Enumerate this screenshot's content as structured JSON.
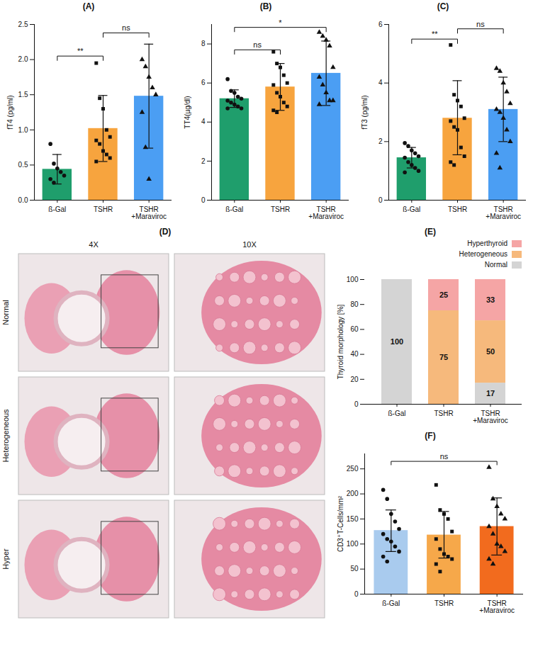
{
  "chart_data": [
    {
      "type": "bar",
      "title": "(A)",
      "y_label": "fT4 (pg/ml)",
      "categories": [
        "ß-Gal",
        "TSHR",
        "TSHR\n+Maraviroc"
      ],
      "values": [
        0.44,
        1.02,
        1.48
      ],
      "colors": [
        "#1f9e6c",
        "#f7a43e",
        "#4b9ef3"
      ],
      "error_low": [
        0.23,
        0.55,
        0.74
      ],
      "error_high": [
        0.65,
        1.49,
        2.22
      ],
      "points": [
        {
          "marker": "circle",
          "values": [
            0.8,
            0.52,
            0.45,
            0.4,
            0.35,
            0.3,
            0.25
          ]
        },
        {
          "marker": "square",
          "values": [
            1.95,
            1.45,
            1.3,
            1.0,
            0.9,
            0.85,
            0.8,
            0.7,
            0.65,
            0.6,
            0.55
          ]
        },
        {
          "marker": "triangle",
          "values": [
            2.0,
            1.9,
            1.75,
            1.6,
            1.5,
            1.25,
            0.75,
            0.3
          ]
        }
      ],
      "comparisons": [
        {
          "from": "ß-Gal",
          "to": "TSHR",
          "label": "**",
          "y": 2.05
        },
        {
          "from": "TSHR",
          "to": "TSHR\n+Maraviroc",
          "label": "ns",
          "y": 2.38
        }
      ],
      "ylim": [
        0,
        2.5
      ],
      "yticks": [
        {
          "value": 0,
          "label": "0.0"
        },
        0.5,
        {
          "value": 1,
          "label": "1.0"
        },
        1.5,
        {
          "value": 2,
          "label": "2.0"
        },
        2.5
      ]
    },
    {
      "type": "bar",
      "title": "(B)",
      "y_label": "TT4(µg/dl)",
      "categories": [
        "ß-Gal",
        "TSHR",
        "TSHR\n+Maraviroc"
      ],
      "values": [
        5.2,
        5.8,
        6.5
      ],
      "colors": [
        "#1f9e6c",
        "#f7a43e",
        "#4b9ef3"
      ],
      "error_low": [
        4.75,
        4.6,
        4.85
      ],
      "error_high": [
        5.65,
        7.0,
        8.15
      ],
      "points": [
        {
          "marker": "circle",
          "values": [
            6.2,
            5.6,
            5.5,
            5.3,
            5.2,
            5.1,
            5.0,
            4.9,
            4.8,
            4.7,
            4.7
          ]
        },
        {
          "marker": "square",
          "values": [
            7.6,
            7.0,
            6.8,
            6.4,
            6.0,
            5.9,
            5.5,
            5.3,
            5.0,
            4.8,
            4.6,
            4.5
          ]
        },
        {
          "marker": "triangle",
          "values": [
            8.6,
            8.4,
            8.2,
            7.9,
            6.8,
            6.3,
            5.9,
            5.5,
            5.1,
            5.1,
            4.9
          ]
        }
      ],
      "comparisons": [
        {
          "from": "ß-Gal",
          "to": "TSHR",
          "label": "ns",
          "y": 7.7
        },
        {
          "from": "ß-Gal",
          "to": "TSHR\n+Maraviroc",
          "label": "*",
          "y": 8.85
        }
      ],
      "ylim": [
        0,
        9
      ],
      "yticks": [
        0,
        2,
        4,
        6,
        8
      ]
    },
    {
      "type": "bar",
      "title": "(C)",
      "y_label": "fT3 (pg/ml)",
      "categories": [
        "ß-Gal",
        "TSHR",
        "TSHR\n+Maraviroc"
      ],
      "values": [
        1.45,
        2.8,
        3.1
      ],
      "colors": [
        "#1f9e6c",
        "#f7a43e",
        "#4b9ef3"
      ],
      "error_low": [
        1.1,
        1.55,
        2.0
      ],
      "error_high": [
        1.8,
        4.08,
        4.2
      ],
      "points": [
        {
          "marker": "circle",
          "values": [
            1.95,
            1.85,
            1.7,
            1.6,
            1.5,
            1.45,
            1.3,
            1.2,
            1.1,
            1.0,
            0.95
          ]
        },
        {
          "marker": "square",
          "values": [
            5.3,
            3.6,
            3.4,
            3.2,
            2.8,
            2.7,
            2.5,
            2.4,
            1.8,
            1.5,
            1.3,
            1.2
          ]
        },
        {
          "marker": "triangle",
          "values": [
            4.5,
            4.4,
            4.0,
            3.7,
            3.3,
            3.1,
            3.0,
            2.8,
            2.4,
            2.0,
            1.6,
            1.1
          ]
        }
      ],
      "comparisons": [
        {
          "from": "ß-Gal",
          "to": "TSHR",
          "label": "**",
          "y": 5.5
        },
        {
          "from": "TSHR",
          "to": "TSHR\n+Maraviroc",
          "label": "ns",
          "y": 5.85
        }
      ],
      "ylim": [
        0,
        6
      ],
      "yticks": [
        0,
        2,
        4,
        6
      ]
    },
    {
      "type": "image",
      "title": "(D)",
      "columns": [
        "4X",
        "10X"
      ],
      "rows": [
        "Normal",
        "Heterogeneous",
        "Hyper"
      ]
    },
    {
      "type": "bar",
      "stacked": true,
      "data_labels": true,
      "legend": "top-right",
      "title": "(E)",
      "y_label": "Thyroid morphology [%]",
      "categories": [
        "ß-Gal",
        "TSHR",
        "TSHR\n+Maraviroc"
      ],
      "series": [
        {
          "name": "Normal",
          "color": "#d4d4d4",
          "values": [
            100,
            0,
            17
          ]
        },
        {
          "name": "Heterogeneous",
          "color": "#f6b97c",
          "values": [
            0,
            75,
            50
          ]
        },
        {
          "name": "Hyperthyroid",
          "color": "#f5a5a5",
          "values": [
            0,
            25,
            33
          ]
        }
      ],
      "ylim": [
        0,
        100
      ],
      "yticks": [
        0,
        20,
        40,
        60,
        80,
        100
      ]
    },
    {
      "type": "bar",
      "title": "(F)",
      "y_label": "CD3⁺T-Cells/mm²",
      "categories": [
        "ß-Gal",
        "TSHR",
        "TSHR\n+Maraviroc"
      ],
      "values": [
        127,
        118,
        135
      ],
      "colors": [
        "#a9cbee",
        "#f6a84a",
        "#f26b1e"
      ],
      "error_low": [
        85,
        72,
        78
      ],
      "error_high": [
        168,
        165,
        192
      ],
      "points": [
        {
          "marker": "circle",
          "values": [
            208,
            190,
            160,
            145,
            130,
            120,
            110,
            105,
            95,
            85,
            75,
            65
          ]
        },
        {
          "marker": "square",
          "values": [
            218,
            168,
            160,
            150,
            125,
            110,
            90,
            80,
            75,
            70,
            60,
            45
          ]
        },
        {
          "marker": "triangle",
          "values": [
            253,
            190,
            175,
            160,
            150,
            135,
            120,
            100,
            95,
            85,
            70,
            60
          ]
        }
      ],
      "comparisons": [
        {
          "from": "ß-Gal",
          "to": "TSHR\n+Maraviroc",
          "label": "ns",
          "y": 265
        }
      ],
      "ylim": [
        0,
        280
      ],
      "yticks": [
        0,
        50,
        100,
        150,
        200,
        250
      ]
    }
  ]
}
